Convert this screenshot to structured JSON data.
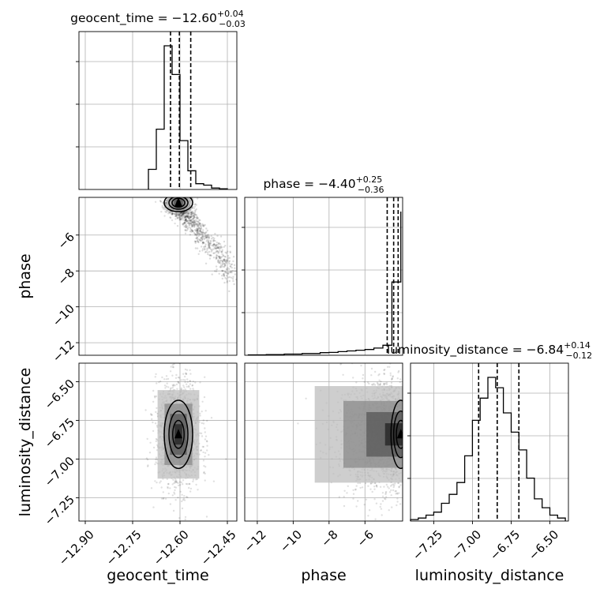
{
  "chart_data": {
    "type": "corner",
    "colors": {
      "hist": "#000000",
      "points": "#000000",
      "grid": "#b0b0b0"
    },
    "parameters": [
      {
        "name": "geocent_time",
        "title": {
          "prefix": "geocent_time = ",
          "median": "−12.60",
          "upper": "+0.04",
          "lower": "−0.03"
        },
        "label": "geocent_time",
        "range": [
          -12.92,
          -12.42
        ],
        "ticks": [
          -12.9,
          -12.75,
          -12.6,
          -12.45
        ],
        "tick_labels": [
          "−12.90",
          "−12.75",
          "−12.60",
          "−12.45"
        ],
        "quantiles": [
          -12.63,
          -12.602,
          -12.566
        ],
        "hist_edges": [
          -12.7,
          -12.675,
          -12.65,
          -12.625,
          -12.6,
          -12.575,
          -12.55,
          -12.525,
          -12.5,
          -12.475,
          -12.45
        ],
        "hist_counts": [
          0.14,
          0.42,
          1.0,
          0.8,
          0.34,
          0.13,
          0.04,
          0.03,
          0.01,
          0.005
        ]
      },
      {
        "name": "phase",
        "title": {
          "prefix": "phase = ",
          "median": "−4.40",
          "upper": "+0.25",
          "lower": "−0.36"
        },
        "label": "phase",
        "range": [
          -12.7,
          -3.9
        ],
        "ticks": [
          -12,
          -10,
          -8,
          -6
        ],
        "tick_labels": [
          "−12",
          "−10",
          "−8",
          "−6"
        ],
        "quantiles": [
          -4.76,
          -4.4,
          -4.15
        ],
        "hist_edges": [
          -12.5,
          -12.0,
          -11.5,
          -11.0,
          -10.5,
          -10.0,
          -9.5,
          -9.0,
          -8.5,
          -8.0,
          -7.5,
          -7.0,
          -6.5,
          -6.0,
          -5.5,
          -5.0,
          -4.5,
          -4.0
        ],
        "hist_counts": [
          0.003,
          0.003,
          0.005,
          0.005,
          0.008,
          0.008,
          0.012,
          0.012,
          0.018,
          0.02,
          0.025,
          0.03,
          0.035,
          0.04,
          0.05,
          0.07,
          0.51,
          1.0
        ]
      },
      {
        "name": "luminosity_distance",
        "title": {
          "prefix": "luminosity_distance = ",
          "median": "−6.84",
          "upper": "+0.14",
          "lower": "−0.12"
        },
        "label": "luminosity_distance",
        "range": [
          -7.4,
          -6.38
        ],
        "ticks": [
          -7.25,
          -7.0,
          -6.75,
          -6.5
        ],
        "tick_labels": [
          "−7.25",
          "−7.00",
          "−6.75",
          "−6.50"
        ],
        "quantiles": [
          -6.96,
          -6.84,
          -6.7
        ],
        "hist_edges": [
          -7.4,
          -7.35,
          -7.3,
          -7.25,
          -7.2,
          -7.15,
          -7.1,
          -7.05,
          -7.0,
          -6.95,
          -6.9,
          -6.85,
          -6.8,
          -6.75,
          -6.7,
          -6.65,
          -6.6,
          -6.55,
          -6.5,
          -6.45,
          -6.4
        ],
        "hist_counts": [
          0.01,
          0.02,
          0.04,
          0.06,
          0.12,
          0.18,
          0.26,
          0.44,
          0.68,
          0.83,
          0.97,
          0.9,
          0.73,
          0.6,
          0.48,
          0.29,
          0.15,
          0.09,
          0.04,
          0.02
        ]
      }
    ],
    "pairs": [
      {
        "x": "geocent_time",
        "y": "phase",
        "x_range": [
          -12.92,
          -12.42
        ],
        "y_range": [
          -12.7,
          -3.9
        ],
        "y_ticks": [
          -12,
          -10,
          -8,
          -6
        ],
        "y_tick_labels": [
          "−12",
          "−10",
          "−8",
          "−6"
        ],
        "center": [
          -12.605,
          -4.2
        ],
        "spread": [
          0.012,
          0.18
        ],
        "tail": {
          "from": [
            -12.6,
            -4.5
          ],
          "to": [
            -12.44,
            -8.0
          ],
          "width": [
            0.015,
            0.35
          ]
        },
        "contour_levels": [
          [
            0.02,
            0.25
          ],
          [
            0.03,
            0.36
          ],
          [
            0.045,
            0.5
          ]
        ]
      },
      {
        "x": "geocent_time",
        "y": "luminosity_distance",
        "x_range": [
          -12.92,
          -12.42
        ],
        "y_range": [
          -7.4,
          -6.38
        ],
        "y_ticks": [
          -7.25,
          -7.0,
          -6.75,
          -6.5
        ],
        "y_tick_labels": [
          "−7.25",
          "−7.00",
          "−6.75",
          "−6.50"
        ],
        "center": [
          -12.605,
          -6.84
        ],
        "spread": [
          0.022,
          0.11
        ],
        "contour_levels": [
          [
            0.018,
            0.09
          ],
          [
            0.03,
            0.15
          ],
          [
            0.045,
            0.22
          ]
        ]
      },
      {
        "x": "phase",
        "y": "luminosity_distance",
        "x_range": [
          -12.7,
          -3.9
        ],
        "y_range": [
          -7.4,
          -6.38
        ],
        "center": [
          -4.0,
          -6.84
        ],
        "spread": [
          1.6,
          0.12
        ],
        "contour_levels": [
          [
            0.25,
            0.09
          ],
          [
            0.4,
            0.15
          ],
          [
            0.55,
            0.22
          ]
        ]
      }
    ]
  }
}
